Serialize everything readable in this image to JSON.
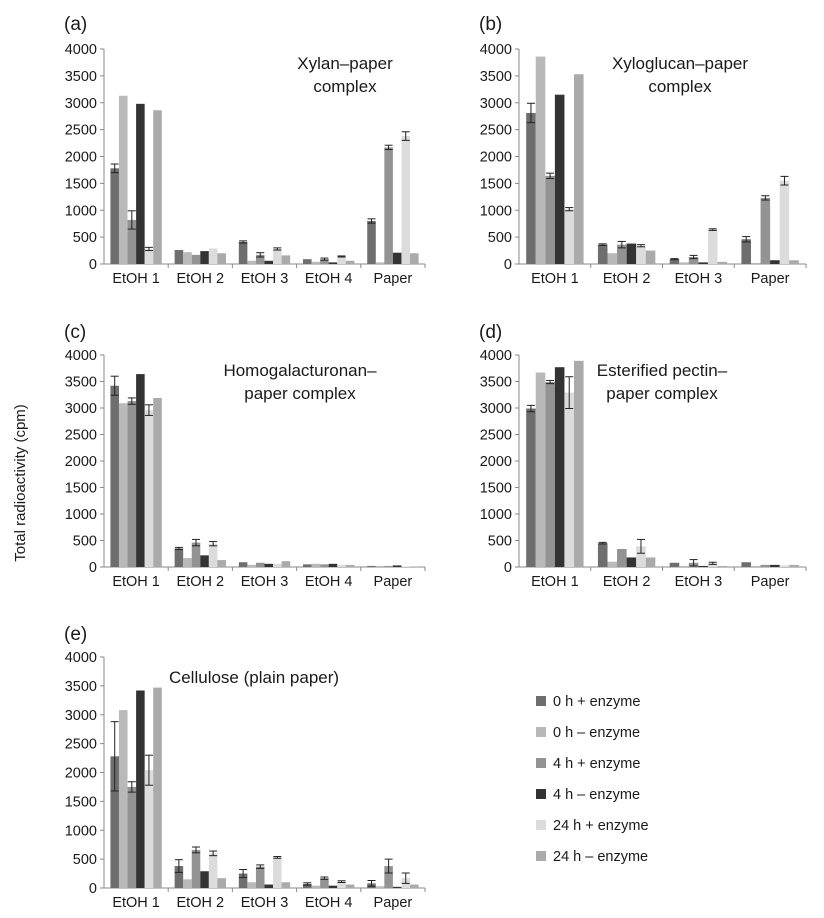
{
  "figure": {
    "y_axis_label": "Total radioactivity (cpm)"
  },
  "legend": {
    "items": [
      {
        "label": "0 h + enzyme",
        "color": "#6e6e6e"
      },
      {
        "label": "0 h – enzyme",
        "color": "#b9b9b9"
      },
      {
        "label": "4 h + enzyme",
        "color": "#939393"
      },
      {
        "label": "4 h – enzyme",
        "color": "#333333"
      },
      {
        "label": "24 h + enzyme",
        "color": "#dcdcdc"
      },
      {
        "label": "24 h – enzyme",
        "color": "#aaaaaa"
      }
    ]
  },
  "chart_data": [
    {
      "type": "bar",
      "panel": "(a)",
      "title_lines": [
        "Xylan–paper",
        "complex"
      ],
      "ylim": [
        0,
        4000
      ],
      "yticks": [
        0,
        500,
        1000,
        1500,
        2000,
        2500,
        3000,
        3500,
        4000
      ],
      "categories": [
        "EtOH 1",
        "EtOH 2",
        "EtOH 3",
        "EtOH 4",
        "Paper"
      ],
      "series": [
        {
          "values": [
            1780,
            260,
            410,
            90,
            800
          ],
          "errors": [
            80,
            0,
            20,
            0,
            40
          ]
        },
        {
          "values": [
            3130,
            220,
            60,
            40,
            30
          ],
          "errors": [
            0,
            0,
            0,
            0,
            0
          ]
        },
        {
          "values": [
            820,
            170,
            170,
            90,
            2170
          ],
          "errors": [
            170,
            0,
            40,
            20,
            40
          ]
        },
        {
          "values": [
            2980,
            240,
            60,
            30,
            210
          ],
          "errors": [
            0,
            0,
            0,
            0,
            0
          ]
        },
        {
          "values": [
            280,
            290,
            280,
            140,
            2380
          ],
          "errors": [
            30,
            0,
            20,
            10,
            80
          ]
        },
        {
          "values": [
            2860,
            200,
            160,
            60,
            200
          ],
          "errors": [
            0,
            0,
            0,
            0,
            0
          ]
        }
      ]
    },
    {
      "type": "bar",
      "panel": "(b)",
      "title_lines": [
        "Xyloglucan–paper",
        "complex"
      ],
      "ylim": [
        0,
        4000
      ],
      "yticks": [
        0,
        500,
        1000,
        1500,
        2000,
        2500,
        3000,
        3500,
        4000
      ],
      "categories": [
        "EtOH 1",
        "EtOH 2",
        "EtOH 3",
        "Paper"
      ],
      "series": [
        {
          "values": [
            2810,
            360,
            90,
            460
          ],
          "errors": [
            180,
            15,
            10,
            50
          ]
        },
        {
          "values": [
            3860,
            200,
            30,
            20
          ],
          "errors": [
            0,
            0,
            0,
            0
          ]
        },
        {
          "values": [
            1640,
            360,
            130,
            1230
          ],
          "errors": [
            50,
            60,
            30,
            40
          ]
        },
        {
          "values": [
            3150,
            380,
            30,
            70
          ],
          "errors": [
            0,
            0,
            0,
            0
          ]
        },
        {
          "values": [
            1020,
            340,
            640,
            1550
          ],
          "errors": [
            30,
            20,
            15,
            80
          ]
        },
        {
          "values": [
            3530,
            250,
            40,
            70
          ],
          "errors": [
            0,
            0,
            0,
            0
          ]
        }
      ]
    },
    {
      "type": "bar",
      "panel": "(c)",
      "title_lines": [
        "Homogalacturonan–",
        "paper complex"
      ],
      "ylim": [
        0,
        4000
      ],
      "yticks": [
        0,
        500,
        1000,
        1500,
        2000,
        2500,
        3000,
        3500,
        4000
      ],
      "categories": [
        "EtOH 1",
        "EtOH 2",
        "EtOH 3",
        "EtOH 4",
        "Paper"
      ],
      "series": [
        {
          "values": [
            3420,
            350,
            90,
            50,
            20
          ],
          "errors": [
            180,
            20,
            0,
            0,
            0
          ]
        },
        {
          "values": [
            3090,
            170,
            40,
            60,
            20
          ],
          "errors": [
            0,
            0,
            0,
            0,
            0
          ]
        },
        {
          "values": [
            3130,
            460,
            80,
            50,
            20
          ],
          "errors": [
            60,
            60,
            0,
            0,
            0
          ]
        },
        {
          "values": [
            3640,
            220,
            60,
            60,
            30
          ],
          "errors": [
            0,
            0,
            0,
            0,
            0
          ]
        },
        {
          "values": [
            2960,
            440,
            60,
            40,
            10
          ],
          "errors": [
            100,
            40,
            0,
            0,
            0
          ]
        },
        {
          "values": [
            3190,
            130,
            110,
            40,
            10
          ],
          "errors": [
            0,
            0,
            0,
            0,
            0
          ]
        }
      ]
    },
    {
      "type": "bar",
      "panel": "(d)",
      "title_lines": [
        "Esterified pectin–",
        "paper complex"
      ],
      "ylim": [
        0,
        4000
      ],
      "yticks": [
        0,
        500,
        1000,
        1500,
        2000,
        2500,
        3000,
        3500,
        4000
      ],
      "categories": [
        "EtOH 1",
        "EtOH 2",
        "EtOH 3",
        "Paper"
      ],
      "series": [
        {
          "values": [
            2990,
            450,
            80,
            90
          ],
          "errors": [
            60,
            15,
            0,
            0
          ]
        },
        {
          "values": [
            3670,
            100,
            20,
            20
          ],
          "errors": [
            0,
            0,
            0,
            0
          ]
        },
        {
          "values": [
            3490,
            340,
            80,
            40
          ],
          "errors": [
            30,
            0,
            60,
            0
          ]
        },
        {
          "values": [
            3770,
            180,
            20,
            40
          ],
          "errors": [
            0,
            0,
            0,
            0
          ]
        },
        {
          "values": [
            3290,
            390,
            70,
            30
          ],
          "errors": [
            300,
            130,
            20,
            0
          ]
        },
        {
          "values": [
            3890,
            180,
            20,
            40
          ],
          "errors": [
            0,
            0,
            0,
            0
          ]
        }
      ]
    },
    {
      "type": "bar",
      "panel": "(e)",
      "title_lines": [
        "Cellulose (plain paper)"
      ],
      "ylim": [
        0,
        4000
      ],
      "yticks": [
        0,
        500,
        1000,
        1500,
        2000,
        2500,
        3000,
        3500,
        4000
      ],
      "categories": [
        "EtOH 1",
        "EtOH 2",
        "EtOH 3",
        "EtOH 4",
        "Paper"
      ],
      "series": [
        {
          "values": [
            2280,
            380,
            250,
            70,
            80
          ],
          "errors": [
            600,
            110,
            70,
            20,
            50
          ]
        },
        {
          "values": [
            3080,
            150,
            100,
            40,
            30
          ],
          "errors": [
            0,
            0,
            0,
            0,
            0
          ]
        },
        {
          "values": [
            1750,
            660,
            370,
            170,
            380
          ],
          "errors": [
            90,
            50,
            30,
            20,
            120
          ]
        },
        {
          "values": [
            3420,
            290,
            60,
            40,
            20
          ],
          "errors": [
            0,
            0,
            0,
            0,
            0
          ]
        },
        {
          "values": [
            2040,
            600,
            530,
            110,
            170
          ],
          "errors": [
            260,
            40,
            15,
            15,
            90
          ]
        },
        {
          "values": [
            3470,
            170,
            100,
            60,
            60
          ],
          "errors": [
            0,
            0,
            0,
            0,
            0
          ]
        }
      ]
    }
  ]
}
